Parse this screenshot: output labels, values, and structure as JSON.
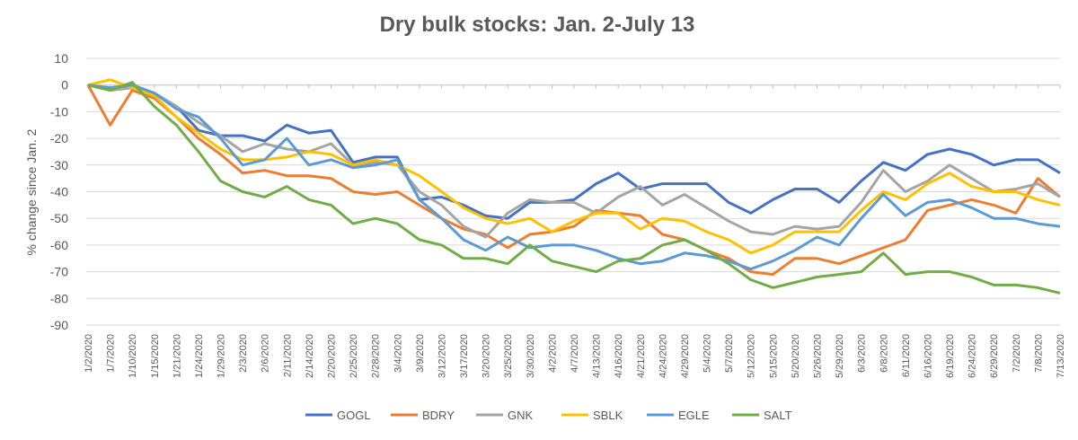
{
  "chart_data": {
    "type": "line",
    "title": "Dry bulk stocks: Jan. 2-July 13",
    "xlabel": "",
    "ylabel": "% change since Jan. 2",
    "ylim": [
      -90,
      10
    ],
    "yticks": [
      10,
      0,
      -10,
      -20,
      -30,
      -40,
      -50,
      -60,
      -70,
      -80,
      -90
    ],
    "grid": true,
    "legend_position": "bottom",
    "x": [
      "1/2/2020",
      "1/7/2020",
      "1/10/2020",
      "1/15/2020",
      "1/21/2020",
      "1/24/2020",
      "1/29/2020",
      "2/3/2020",
      "2/6/2020",
      "2/11/2020",
      "2/14/2020",
      "2/20/2020",
      "2/25/2020",
      "2/28/2020",
      "3/4/2020",
      "3/9/2020",
      "3/12/2020",
      "3/17/2020",
      "3/20/2020",
      "3/25/2020",
      "3/30/2020",
      "4/2/2020",
      "4/7/2020",
      "4/13/2020",
      "4/16/2020",
      "4/21/2020",
      "4/24/2020",
      "4/29/2020",
      "5/4/2020",
      "5/7/2020",
      "5/12/2020",
      "5/15/2020",
      "5/20/2020",
      "5/26/2020",
      "5/29/2020",
      "6/3/2020",
      "6/8/2020",
      "6/11/2020",
      "6/16/2020",
      "6/19/2020",
      "6/24/2020",
      "6/29/2020",
      "7/2/2020",
      "7/8/2020",
      "7/13/2020"
    ],
    "series": [
      {
        "name": "GOGL",
        "color": "#4472C4",
        "values": [
          0,
          -2,
          0,
          -3,
          -8,
          -17,
          -19,
          -19,
          -21,
          -15,
          -18,
          -17,
          -29,
          -27,
          -27,
          -43,
          -42,
          -45,
          -49,
          -50,
          -44,
          -44,
          -43,
          -37,
          -33,
          -39,
          -37,
          -37,
          -37,
          -44,
          -48,
          -43,
          -39,
          -39,
          -44,
          -36,
          -29,
          -32,
          -26,
          -24,
          -26,
          -30,
          -28,
          -28,
          -33
        ]
      },
      {
        "name": "BDRY",
        "color": "#ED7D31",
        "values": [
          0,
          -15,
          -2,
          -5,
          -12,
          -20,
          -26,
          -33,
          -32,
          -34,
          -34,
          -35,
          -40,
          -41,
          -40,
          -45,
          -50,
          -54,
          -56,
          -61,
          -56,
          -55,
          -53,
          -47,
          -48,
          -49,
          -56,
          -58,
          -62,
          -65,
          -70,
          -71,
          -65,
          -65,
          -67,
          -64,
          -61,
          -58,
          -47,
          -45,
          -43,
          -45,
          -48,
          -35,
          -42
        ]
      },
      {
        "name": "GNK",
        "color": "#A5A5A5",
        "values": [
          0,
          -2,
          -1,
          -3,
          -8,
          -14,
          -19,
          -25,
          -22,
          -24,
          -25,
          -22,
          -30,
          -29,
          -30,
          -40,
          -45,
          -53,
          -57,
          -48,
          -43,
          -44,
          -44,
          -48,
          -42,
          -38,
          -45,
          -41,
          -46,
          -51,
          -55,
          -56,
          -53,
          -54,
          -53,
          -44,
          -32,
          -40,
          -36,
          -30,
          -35,
          -40,
          -39,
          -37,
          -42
        ]
      },
      {
        "name": "SBLK",
        "color": "#FFC000",
        "values": [
          0,
          2,
          -1,
          -4,
          -12,
          -18,
          -24,
          -28,
          -28,
          -27,
          -25,
          -26,
          -30,
          -28,
          -30,
          -34,
          -40,
          -46,
          -50,
          -52,
          -50,
          -55,
          -51,
          -48,
          -48,
          -54,
          -50,
          -51,
          -55,
          -58,
          -63,
          -60,
          -55,
          -55,
          -55,
          -47,
          -40,
          -43,
          -37,
          -33,
          -38,
          -40,
          -40,
          -43,
          -45
        ]
      },
      {
        "name": "EGLE",
        "color": "#5B9BD5",
        "values": [
          0,
          -1,
          0,
          -3,
          -9,
          -12,
          -20,
          -30,
          -28,
          -20,
          -30,
          -28,
          -31,
          -30,
          -28,
          -43,
          -50,
          -58,
          -62,
          -57,
          -61,
          -60,
          -60,
          -62,
          -65,
          -67,
          -66,
          -63,
          -64,
          -66,
          -69,
          -66,
          -62,
          -57,
          -60,
          -50,
          -41,
          -49,
          -44,
          -43,
          -46,
          -50,
          -50,
          -52,
          -53
        ]
      },
      {
        "name": "SALT",
        "color": "#70AD47",
        "values": [
          0,
          -2,
          1,
          -8,
          -15,
          -25,
          -36,
          -40,
          -42,
          -38,
          -43,
          -45,
          -52,
          -50,
          -52,
          -58,
          -60,
          -65,
          -65,
          -67,
          -60,
          -66,
          -68,
          -70,
          -66,
          -65,
          -60,
          -58,
          -62,
          -67,
          -73,
          -76,
          -74,
          -72,
          -71,
          -70,
          -63,
          -71,
          -70,
          -70,
          -72,
          -75,
          -75,
          -76,
          -78
        ]
      }
    ]
  }
}
